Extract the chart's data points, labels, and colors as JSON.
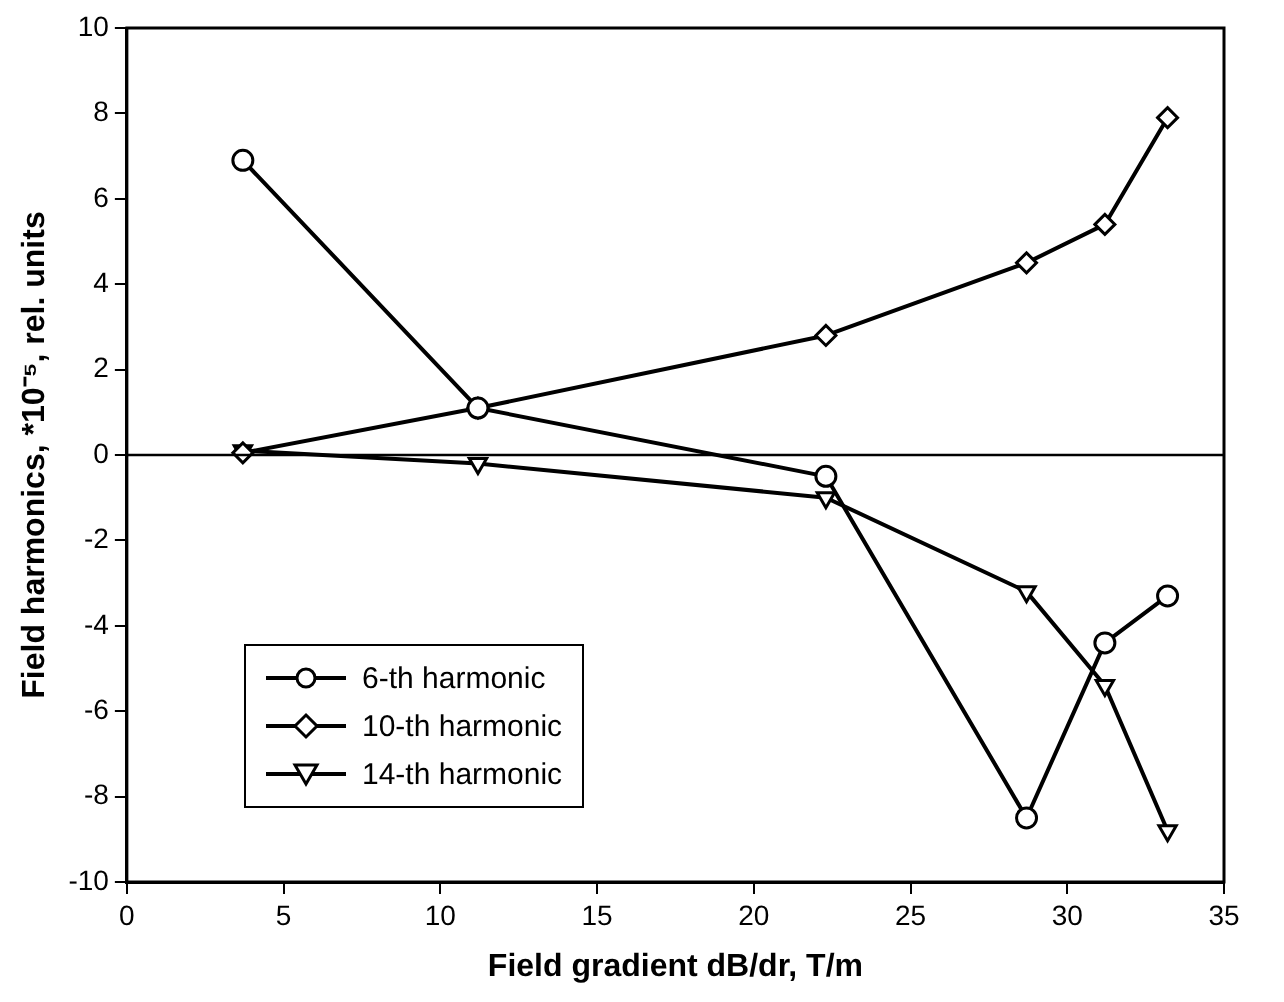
{
  "chart_data": {
    "type": "line",
    "xlabel": "Field gradient dB/dr, T/m",
    "ylabel": "Field harmonics, *10⁻⁵, rel. units",
    "xlim": [
      0,
      35
    ],
    "xticks": [
      0,
      5,
      10,
      15,
      20,
      25,
      30,
      35
    ],
    "ylim": [
      -10,
      10
    ],
    "yticks": [
      -10,
      -8,
      -6,
      -4,
      -2,
      0,
      2,
      4,
      6,
      8,
      10
    ],
    "grid": false,
    "legend": "bottom left",
    "line_style": "solid",
    "ref_lines": [
      {
        "axis": "y",
        "value": 0,
        "color": "#000000"
      }
    ],
    "x": [
      3.7,
      11.2,
      22.3,
      28.7,
      31.2,
      33.2
    ],
    "series": [
      {
        "name": "6-th harmonic",
        "color": "#000000",
        "marker": "circle",
        "values": [
          6.9,
          1.1,
          -0.5,
          -8.5,
          -4.4,
          -3.3
        ]
      },
      {
        "name": "10-th harmonic",
        "color": "#000000",
        "marker": "diamond",
        "values": [
          0.05,
          1.1,
          2.8,
          4.5,
          5.4,
          7.9
        ]
      },
      {
        "name": "14-th harmonic",
        "color": "#000000",
        "marker": "triangle",
        "values": [
          0.1,
          -0.2,
          -1.0,
          -3.2,
          -5.4,
          -8.8
        ]
      }
    ]
  }
}
